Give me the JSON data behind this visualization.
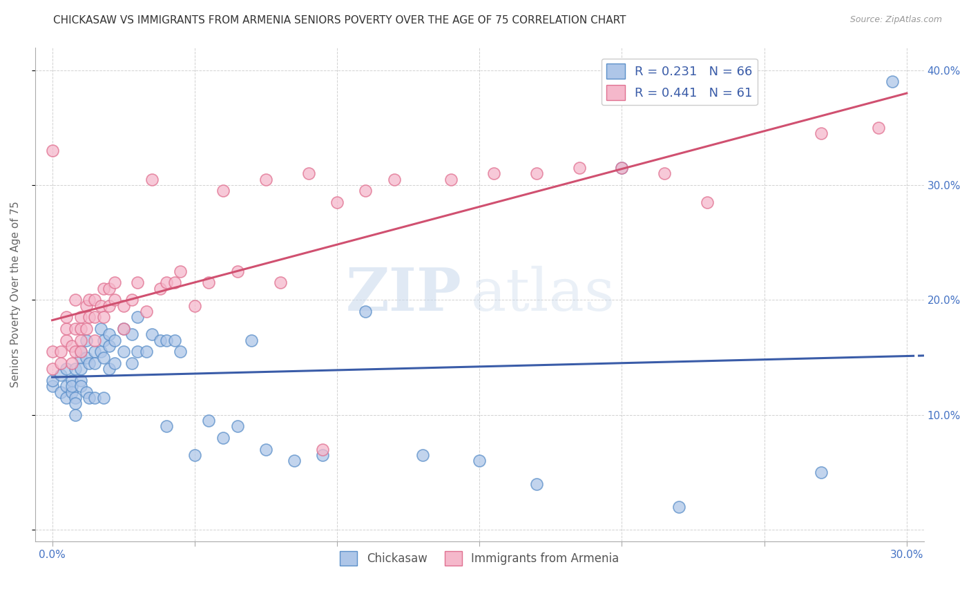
{
  "title": "CHICKASAW VS IMMIGRANTS FROM ARMENIA SENIORS POVERTY OVER THE AGE OF 75 CORRELATION CHART",
  "source": "Source: ZipAtlas.com",
  "ylabel": "Seniors Poverty Over the Age of 75",
  "x_min": 0.0,
  "x_max": 0.3,
  "y_min": 0.0,
  "y_max": 0.42,
  "x_ticks": [
    0.0,
    0.05,
    0.1,
    0.15,
    0.2,
    0.25,
    0.3
  ],
  "x_tick_labels": [
    "0.0%",
    "",
    "",
    "",
    "",
    "",
    "30.0%"
  ],
  "y_ticks": [
    0.0,
    0.1,
    0.2,
    0.3,
    0.4
  ],
  "y_tick_labels": [
    "",
    "10.0%",
    "20.0%",
    "30.0%",
    "40.0%"
  ],
  "chickasaw_color": "#aec6e8",
  "chickasaw_edge_color": "#5b8fc9",
  "armenia_color": "#f5b8cb",
  "armenia_edge_color": "#e07090",
  "chickasaw_line_color": "#3a5ca8",
  "armenia_line_color": "#d05070",
  "R_chickasaw": 0.231,
  "N_chickasaw": 66,
  "R_armenia": 0.441,
  "N_armenia": 61,
  "legend_label_chickasaw": "Chickasaw",
  "legend_label_armenia": "Immigrants from Armenia",
  "watermark_zip": "ZIP",
  "watermark_atlas": "atlas",
  "background_color": "#ffffff",
  "grid_color": "#cccccc",
  "title_fontsize": 11,
  "tick_label_color": "#4472c4",
  "title_color": "#333333",
  "chickasaw_x": [
    0.0,
    0.0,
    0.003,
    0.003,
    0.005,
    0.005,
    0.005,
    0.007,
    0.007,
    0.007,
    0.008,
    0.008,
    0.008,
    0.008,
    0.01,
    0.01,
    0.01,
    0.01,
    0.01,
    0.012,
    0.012,
    0.012,
    0.013,
    0.013,
    0.015,
    0.015,
    0.015,
    0.017,
    0.017,
    0.018,
    0.018,
    0.018,
    0.02,
    0.02,
    0.02,
    0.022,
    0.022,
    0.025,
    0.025,
    0.028,
    0.028,
    0.03,
    0.03,
    0.033,
    0.035,
    0.038,
    0.04,
    0.04,
    0.043,
    0.045,
    0.05,
    0.055,
    0.06,
    0.065,
    0.07,
    0.075,
    0.085,
    0.095,
    0.11,
    0.13,
    0.15,
    0.17,
    0.2,
    0.22,
    0.27,
    0.295
  ],
  "chickasaw_y": [
    0.125,
    0.13,
    0.135,
    0.12,
    0.125,
    0.14,
    0.115,
    0.13,
    0.12,
    0.125,
    0.14,
    0.115,
    0.11,
    0.1,
    0.15,
    0.155,
    0.13,
    0.14,
    0.125,
    0.15,
    0.165,
    0.12,
    0.145,
    0.115,
    0.155,
    0.145,
    0.115,
    0.155,
    0.175,
    0.165,
    0.15,
    0.115,
    0.16,
    0.17,
    0.14,
    0.165,
    0.145,
    0.175,
    0.155,
    0.17,
    0.145,
    0.185,
    0.155,
    0.155,
    0.17,
    0.165,
    0.165,
    0.09,
    0.165,
    0.155,
    0.065,
    0.095,
    0.08,
    0.09,
    0.165,
    0.07,
    0.06,
    0.065,
    0.19,
    0.065,
    0.06,
    0.04,
    0.315,
    0.02,
    0.05,
    0.39
  ],
  "armenia_x": [
    0.0,
    0.0,
    0.0,
    0.003,
    0.003,
    0.005,
    0.005,
    0.005,
    0.007,
    0.007,
    0.008,
    0.008,
    0.008,
    0.01,
    0.01,
    0.01,
    0.01,
    0.012,
    0.012,
    0.013,
    0.013,
    0.015,
    0.015,
    0.015,
    0.017,
    0.018,
    0.018,
    0.02,
    0.02,
    0.022,
    0.022,
    0.025,
    0.025,
    0.028,
    0.03,
    0.033,
    0.035,
    0.038,
    0.04,
    0.043,
    0.045,
    0.05,
    0.055,
    0.06,
    0.065,
    0.075,
    0.08,
    0.09,
    0.095,
    0.1,
    0.11,
    0.12,
    0.14,
    0.155,
    0.17,
    0.185,
    0.2,
    0.215,
    0.23,
    0.27,
    0.29
  ],
  "armenia_y": [
    0.155,
    0.14,
    0.33,
    0.155,
    0.145,
    0.165,
    0.175,
    0.185,
    0.16,
    0.145,
    0.175,
    0.2,
    0.155,
    0.185,
    0.175,
    0.165,
    0.155,
    0.195,
    0.175,
    0.185,
    0.2,
    0.185,
    0.165,
    0.2,
    0.195,
    0.21,
    0.185,
    0.195,
    0.21,
    0.2,
    0.215,
    0.175,
    0.195,
    0.2,
    0.215,
    0.19,
    0.305,
    0.21,
    0.215,
    0.215,
    0.225,
    0.195,
    0.215,
    0.295,
    0.225,
    0.305,
    0.215,
    0.31,
    0.07,
    0.285,
    0.295,
    0.305,
    0.305,
    0.31,
    0.31,
    0.315,
    0.315,
    0.31,
    0.285,
    0.345,
    0.35
  ]
}
